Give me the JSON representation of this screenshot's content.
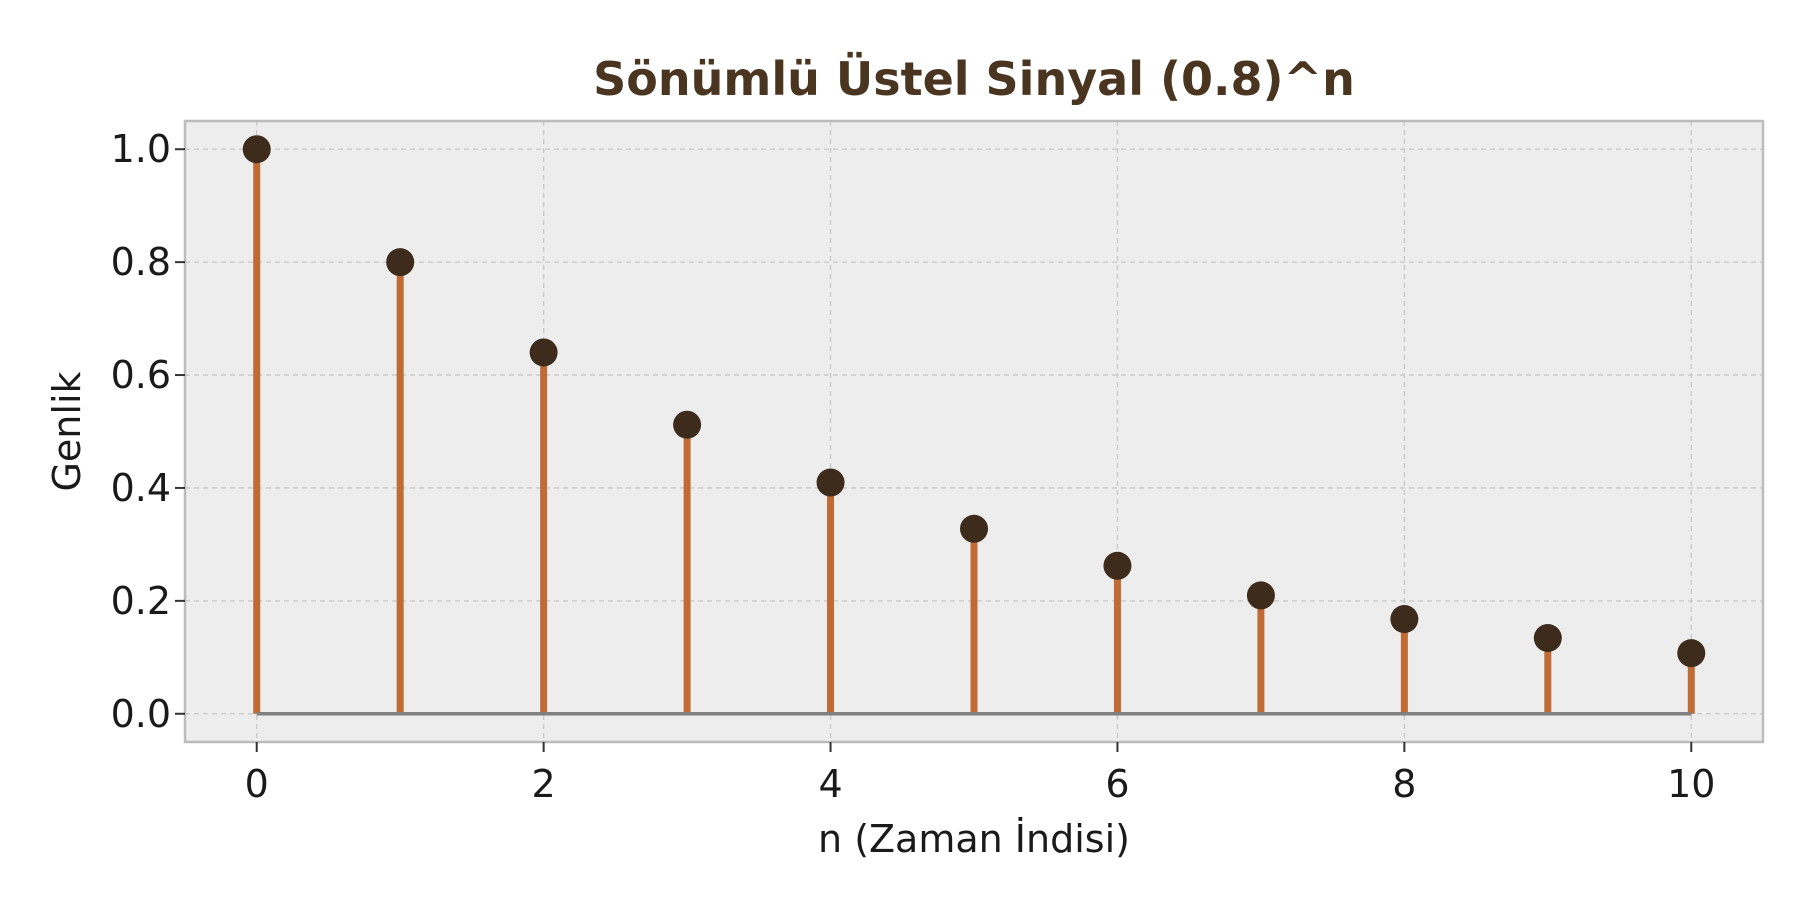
{
  "chart_data": {
    "type": "stem",
    "title": "Sönümlü Üstel Sinyal (0.8)^n",
    "xlabel": "n (Zaman İndisi)",
    "ylabel": "Genlik",
    "x": [
      0,
      1,
      2,
      3,
      4,
      5,
      6,
      7,
      8,
      9,
      10
    ],
    "values": [
      1.0,
      0.8,
      0.64,
      0.512,
      0.4096,
      0.32768,
      0.262144,
      0.2097152,
      0.16777216,
      0.134217728,
      0.1073741824
    ],
    "xlim": [
      -0.5,
      10.5
    ],
    "ylim": [
      -0.05,
      1.05
    ],
    "xticks": [
      0,
      2,
      4,
      6,
      8,
      10
    ],
    "xtick_labels": [
      "0",
      "2",
      "4",
      "6",
      "8",
      "10"
    ],
    "yticks": [
      0.0,
      0.2,
      0.4,
      0.6,
      0.8,
      1.0
    ],
    "ytick_labels": [
      "0.0",
      "0.2",
      "0.4",
      "0.6",
      "0.8",
      "1.0"
    ],
    "grid": true,
    "colors": {
      "stem": "#c06a35",
      "marker": "#3d2b1c",
      "baseline": "#808080",
      "title": "#4a3520",
      "plot_background": "#ededed",
      "grid": "#c8c8c8",
      "frame": "#bcbcbc"
    }
  }
}
